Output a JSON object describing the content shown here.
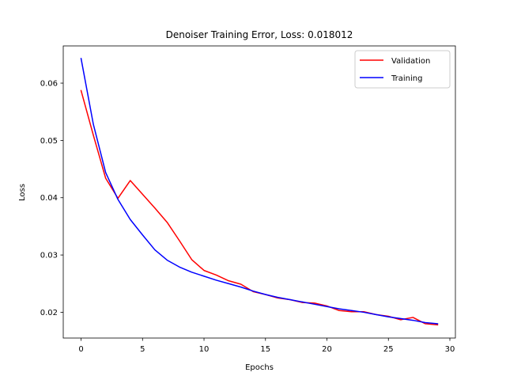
{
  "chart_data": {
    "type": "line",
    "title": "Denoiser Training Error, Loss: 0.018012",
    "xlabel": "Epochs",
    "ylabel": "Loss",
    "xlim": [
      -1.45,
      30.45
    ],
    "ylim": [
      0.0155,
      0.0665
    ],
    "xticks": [
      0,
      5,
      10,
      15,
      20,
      25,
      30
    ],
    "xtick_labels": [
      "0",
      "5",
      "10",
      "15",
      "20",
      "25",
      "30"
    ],
    "yticks": [
      0.02,
      0.03,
      0.04,
      0.05,
      0.06
    ],
    "ytick_labels": [
      "0.02",
      "0.03",
      "0.04",
      "0.05",
      "0.06"
    ],
    "grid": false,
    "legend_position": "top-right",
    "x": [
      0,
      1,
      2,
      3,
      4,
      5,
      6,
      7,
      8,
      9,
      10,
      11,
      12,
      13,
      14,
      15,
      16,
      17,
      18,
      19,
      20,
      21,
      22,
      23,
      24,
      25,
      26,
      27,
      28,
      29
    ],
    "series": [
      {
        "name": "Validation",
        "color": "#ff0000",
        "values": [
          0.0587,
          0.0509,
          0.0434,
          0.0399,
          0.043,
          0.0406,
          0.0382,
          0.0357,
          0.0325,
          0.0292,
          0.0273,
          0.0265,
          0.0255,
          0.0249,
          0.0236,
          0.0231,
          0.0225,
          0.0222,
          0.0217,
          0.0216,
          0.0211,
          0.0203,
          0.0201,
          0.0201,
          0.0196,
          0.0193,
          0.0187,
          0.0191,
          0.018,
          0.0178
        ]
      },
      {
        "name": "Training",
        "color": "#0000ff",
        "values": [
          0.0643,
          0.0528,
          0.0444,
          0.0397,
          0.0362,
          0.0335,
          0.0309,
          0.0291,
          0.0279,
          0.027,
          0.0263,
          0.0256,
          0.025,
          0.0244,
          0.0237,
          0.0231,
          0.0226,
          0.0222,
          0.0218,
          0.0214,
          0.021,
          0.0206,
          0.0203,
          0.02,
          0.0196,
          0.0192,
          0.0189,
          0.0186,
          0.0182,
          0.018
        ]
      }
    ]
  }
}
